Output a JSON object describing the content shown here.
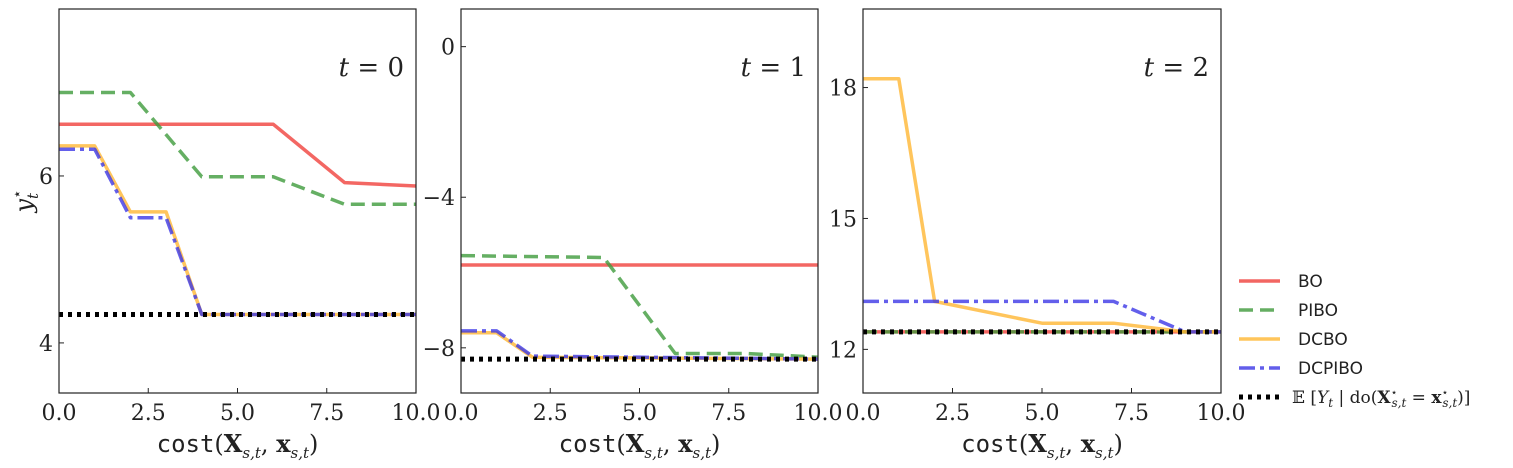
{
  "chart_data": [
    {
      "type": "line",
      "panel_label": "t = 0",
      "xlabel": "cost(X_{s,t}, x_{s,t})",
      "ylabel": "y_t*",
      "xlim": [
        0,
        10
      ],
      "ylim": [
        3.4,
        8.0
      ],
      "xticks": [
        0,
        2.5,
        5,
        7.5,
        10
      ],
      "xtick_labels": [
        "0.0",
        "2.5",
        "5.0",
        "7.5",
        "10.0"
      ],
      "yticks": [
        4,
        6
      ],
      "ytick_labels": [
        "4",
        "6"
      ],
      "series": [
        {
          "name": "BO",
          "x": [
            0,
            6,
            8,
            10
          ],
          "y": [
            6.62,
            6.62,
            5.92,
            5.88
          ]
        },
        {
          "name": "PIBO",
          "x": [
            0,
            2,
            4,
            6,
            8,
            10
          ],
          "y": [
            7.0,
            7.0,
            5.99,
            5.99,
            5.66,
            5.66
          ]
        },
        {
          "name": "DCBO",
          "x": [
            0,
            1,
            2,
            3,
            4,
            10
          ],
          "y": [
            6.36,
            6.36,
            5.57,
            5.57,
            4.34,
            4.34
          ]
        },
        {
          "name": "DCPIBO",
          "x": [
            0,
            1,
            2,
            3,
            4,
            10
          ],
          "y": [
            6.32,
            6.32,
            5.5,
            5.5,
            4.34,
            4.34
          ]
        },
        {
          "name": "E[Y_t | do(X*_{s,t} = x*_{s,t})]",
          "x": [
            0,
            10
          ],
          "y": [
            4.34,
            4.34
          ]
        }
      ]
    },
    {
      "type": "line",
      "panel_label": "t = 1",
      "xlabel": "cost(X_{s,t}, x_{s,t})",
      "ylabel": "",
      "xlim": [
        0,
        10
      ],
      "ylim": [
        -9.2,
        1.0
      ],
      "xticks": [
        0,
        2.5,
        5,
        7.5,
        10
      ],
      "xtick_labels": [
        "0.0",
        "2.5",
        "5.0",
        "7.5",
        "10.0"
      ],
      "yticks": [
        -8,
        -4,
        0
      ],
      "ytick_labels": [
        "−8",
        "−4",
        "0"
      ],
      "series": [
        {
          "name": "BO",
          "x": [
            0,
            10
          ],
          "y": [
            -5.8,
            -5.8
          ]
        },
        {
          "name": "PIBO",
          "x": [
            0,
            4,
            6,
            8,
            10
          ],
          "y": [
            -5.55,
            -5.6,
            -8.15,
            -8.15,
            -8.25
          ]
        },
        {
          "name": "DCBO",
          "x": [
            0,
            1,
            2,
            10
          ],
          "y": [
            -7.6,
            -7.6,
            -8.25,
            -8.3
          ]
        },
        {
          "name": "DCPIBO",
          "x": [
            0,
            1,
            2,
            10
          ],
          "y": [
            -7.55,
            -7.55,
            -8.22,
            -8.3
          ]
        },
        {
          "name": "E[Y_t | do(X*_{s,t} = x*_{s,t})]",
          "x": [
            0,
            10
          ],
          "y": [
            -8.3,
            -8.3
          ]
        }
      ]
    },
    {
      "type": "line",
      "panel_label": "t = 2",
      "xlabel": "cost(X_{s,t}, x_{s,t})",
      "ylabel": "",
      "xlim": [
        0,
        10
      ],
      "ylim": [
        11.0,
        19.8
      ],
      "xticks": [
        0,
        2.5,
        5,
        7.5,
        10
      ],
      "xtick_labels": [
        "0.0",
        "2.5",
        "5.0",
        "7.5",
        "10.0"
      ],
      "yticks": [
        12,
        15,
        18
      ],
      "ytick_labels": [
        "12",
        "15",
        "18"
      ],
      "series": [
        {
          "name": "BO",
          "x": [
            0,
            10
          ],
          "y": [
            12.4,
            12.4
          ]
        },
        {
          "name": "PIBO",
          "x": [
            0,
            10
          ],
          "y": [
            12.4,
            12.4
          ]
        },
        {
          "name": "DCBO",
          "x": [
            0,
            1,
            2,
            5,
            7,
            9,
            10
          ],
          "y": [
            18.2,
            18.2,
            13.1,
            12.6,
            12.6,
            12.4,
            12.4
          ]
        },
        {
          "name": "DCPIBO",
          "x": [
            0,
            7,
            9,
            10
          ],
          "y": [
            13.1,
            13.1,
            12.4,
            12.4
          ]
        },
        {
          "name": "E[Y_t | do(X*_{s,t} = x*_{s,t})]",
          "x": [
            0,
            10
          ],
          "y": [
            12.4,
            12.4
          ]
        }
      ]
    }
  ],
  "styles": {
    "BO": {
      "color": "#f0413c",
      "dash": "",
      "width": 3.5
    },
    "PIBO": {
      "color": "#3f9b3c",
      "dash": "14 7",
      "width": 3.5
    },
    "DCBO": {
      "color": "#ffb733",
      "dash": "",
      "width": 3.5
    },
    "DCPIBO": {
      "color": "#3c37e6",
      "dash": "16 5 4 5",
      "width": 3.5
    },
    "E[Y_t | do(X*_{s,t} = x*_{s,t})]": {
      "color": "#000000",
      "dash": "4 5",
      "width": 5
    }
  },
  "legend": {
    "placement": "right",
    "entries": [
      "BO",
      "PIBO",
      "DCBO",
      "DCPIBO",
      "E[Y_t | do(X*_{s,t} = x*_{s,t})]"
    ]
  }
}
